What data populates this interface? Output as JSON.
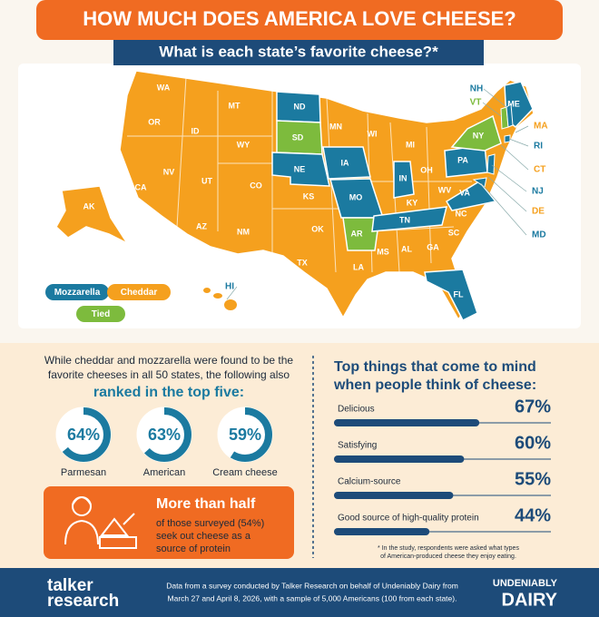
{
  "header": {
    "title": "HOW MUCH DOES AMERICA LOVE CHEESE?",
    "subtitle": "What is each state’s favorite cheese?*"
  },
  "map": {
    "legend": [
      {
        "label": "Mozzarella",
        "color": "#1b7aa0"
      },
      {
        "label": "Cheddar",
        "color": "#f5a01e"
      },
      {
        "label": "Tied",
        "color": "#7dbb3d"
      }
    ],
    "states": [
      {
        "label": "WA",
        "color": "#f5a01e"
      },
      {
        "label": "OR",
        "color": "#f5a01e"
      },
      {
        "label": "MT",
        "color": "#f5a01e"
      },
      {
        "label": "ID",
        "color": "#f5a01e"
      },
      {
        "label": "WY",
        "color": "#f5a01e"
      },
      {
        "label": "NV",
        "color": "#f5a01e"
      },
      {
        "label": "CA",
        "color": "#f5a01e"
      },
      {
        "label": "UT",
        "color": "#f5a01e"
      },
      {
        "label": "CO",
        "color": "#f5a01e"
      },
      {
        "label": "AZ",
        "color": "#f5a01e"
      },
      {
        "label": "NM",
        "color": "#f5a01e"
      },
      {
        "label": "ND",
        "color": "#1b7aa0"
      },
      {
        "label": "SD",
        "color": "#7dbb3d"
      },
      {
        "label": "NE",
        "color": "#1b7aa0"
      },
      {
        "label": "KS",
        "color": "#f5a01e"
      },
      {
        "label": "OK",
        "color": "#f5a01e"
      },
      {
        "label": "TX",
        "color": "#f5a01e"
      },
      {
        "label": "MN",
        "color": "#f5a01e"
      },
      {
        "label": "IA",
        "color": "#1b7aa0"
      },
      {
        "label": "MO",
        "color": "#1b7aa0"
      },
      {
        "label": "AR",
        "color": "#7dbb3d"
      },
      {
        "label": "LA",
        "color": "#f5a01e"
      },
      {
        "label": "WI",
        "color": "#f5a01e"
      },
      {
        "label": "MI",
        "color": "#f5a01e"
      },
      {
        "label": "IN",
        "color": "#1b7aa0"
      },
      {
        "label": "OH",
        "color": "#f5a01e"
      },
      {
        "label": "KY",
        "color": "#f5a01e"
      },
      {
        "label": "TN",
        "color": "#1b7aa0"
      },
      {
        "label": "MS",
        "color": "#f5a01e"
      },
      {
        "label": "AL",
        "color": "#f5a01e"
      },
      {
        "label": "GA",
        "color": "#f5a01e"
      },
      {
        "label": "SC",
        "color": "#f5a01e"
      },
      {
        "label": "NC",
        "color": "#f5a01e"
      },
      {
        "label": "WV",
        "color": "#f5a01e"
      },
      {
        "label": "VA",
        "color": "#1b7aa0"
      },
      {
        "label": "PA",
        "color": "#1b7aa0"
      },
      {
        "label": "NY",
        "color": "#7dbb3d"
      },
      {
        "label": "ME",
        "color": "#1b7aa0"
      },
      {
        "label": "FL",
        "color": "#1b7aa0"
      },
      {
        "label": "AK",
        "color": "#f5a01e"
      }
    ],
    "callouts": [
      {
        "label": "NH",
        "color": "#1b7aa0"
      },
      {
        "label": "VT",
        "color": "#7dbb3d"
      },
      {
        "label": "MA",
        "color": "#f5a01e"
      },
      {
        "label": "RI",
        "color": "#1b7aa0"
      },
      {
        "label": "CT",
        "color": "#f5a01e"
      },
      {
        "label": "NJ",
        "color": "#1b7aa0"
      },
      {
        "label": "DE",
        "color": "#f5a01e"
      },
      {
        "label": "MD",
        "color": "#1b7aa0"
      },
      {
        "label": "HI",
        "color": "#1b7aa0"
      }
    ]
  },
  "top_five": {
    "intro": [
      "While cheddar and mozzarella were found to be the",
      "favorite cheeses in all 50 states, the following also"
    ],
    "highlight": "ranked in the top five:",
    "rings": [
      {
        "name": "Parmesan",
        "value": 64,
        "label": "64%"
      },
      {
        "name": "American",
        "value": 63,
        "label": "63%"
      },
      {
        "name": "Cream cheese",
        "value": 59,
        "label": "59%"
      }
    ],
    "callout": {
      "headline": "More than half",
      "body": [
        "of those surveyed (54%)",
        "seek out cheese as a",
        "source of protein"
      ]
    }
  },
  "top_things": {
    "title": [
      "Top things that come to mind",
      "when people think of cheese:"
    ],
    "bars": [
      {
        "name": "Delicious",
        "value": 67,
        "label": "67%"
      },
      {
        "name": "Satisfying",
        "value": 60,
        "label": "60%"
      },
      {
        "name": "Calcium-source",
        "value": 55,
        "label": "55%"
      },
      {
        "name": "Good source of high-quality protein",
        "value": 44,
        "label": "44%"
      }
    ],
    "footnote": [
      "* In the study, respondents were asked what types",
      "of American-produced cheese they enjoy eating."
    ]
  },
  "footer": {
    "logo_left": [
      "talker",
      "research"
    ],
    "source": [
      "Data from a survey conducted by Talker Research on behalf of Undeniably Dairy from",
      "March 27 and April 8, 2026, with a sample of 5,000 Americans (100 from each state)."
    ],
    "logo_right": [
      "UNDENIABLY",
      "DAIRY"
    ]
  }
}
